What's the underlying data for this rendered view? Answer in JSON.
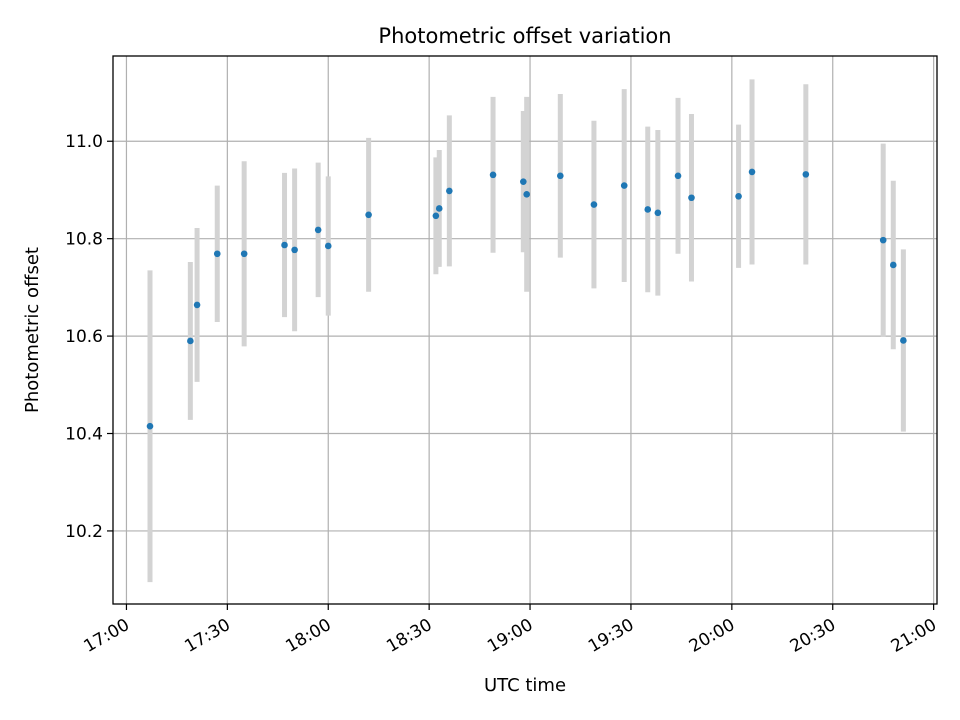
{
  "chart_data": {
    "type": "scatter",
    "title": "Photometric offset variation",
    "xlabel": "UTC time",
    "ylabel": "Photometric offset",
    "x_is_time": true,
    "xlim": [
      "16:56",
      "21:01"
    ],
    "ylim": [
      10.05,
      11.175
    ],
    "x_ticks": [
      "17:00",
      "17:30",
      "18:00",
      "18:30",
      "19:00",
      "19:30",
      "20:00",
      "20:30",
      "21:00"
    ],
    "y_ticks": [
      10.2,
      10.4,
      10.6,
      10.8,
      11.0
    ],
    "y_tick_labels": [
      "10.2",
      "10.4",
      "10.6",
      "10.8",
      "11.0"
    ],
    "grid": true,
    "colors": {
      "point": "#1f77b4",
      "errorbar": "#d3d3d3",
      "grid": "#b0b0b0"
    },
    "points": [
      {
        "x": "17:07",
        "y": 10.415,
        "err": 0.32
      },
      {
        "x": "17:19",
        "y": 10.59,
        "err": 0.162
      },
      {
        "x": "17:21",
        "y": 10.664,
        "err": 0.158
      },
      {
        "x": "17:27",
        "y": 10.769,
        "err": 0.14
      },
      {
        "x": "17:35",
        "y": 10.769,
        "err": 0.19
      },
      {
        "x": "17:47",
        "y": 10.787,
        "err": 0.148
      },
      {
        "x": "17:50",
        "y": 10.777,
        "err": 0.167
      },
      {
        "x": "17:57",
        "y": 10.818,
        "err": 0.138
      },
      {
        "x": "18:00",
        "y": 10.785,
        "err": 0.143
      },
      {
        "x": "18:12",
        "y": 10.849,
        "err": 0.158
      },
      {
        "x": "18:32",
        "y": 10.847,
        "err": 0.12
      },
      {
        "x": "18:33",
        "y": 10.862,
        "err": 0.12
      },
      {
        "x": "18:36",
        "y": 10.898,
        "err": 0.155
      },
      {
        "x": "18:49",
        "y": 10.931,
        "err": 0.16
      },
      {
        "x": "18:58",
        "y": 10.917,
        "err": 0.145
      },
      {
        "x": "18:59",
        "y": 10.891,
        "err": 0.2
      },
      {
        "x": "19:09",
        "y": 10.929,
        "err": 0.168
      },
      {
        "x": "19:19",
        "y": 10.87,
        "err": 0.172
      },
      {
        "x": "19:28",
        "y": 10.909,
        "err": 0.198
      },
      {
        "x": "19:35",
        "y": 10.86,
        "err": 0.17
      },
      {
        "x": "19:38",
        "y": 10.853,
        "err": 0.17
      },
      {
        "x": "19:44",
        "y": 10.929,
        "err": 0.16
      },
      {
        "x": "19:48",
        "y": 10.884,
        "err": 0.172
      },
      {
        "x": "20:02",
        "y": 10.887,
        "err": 0.147
      },
      {
        "x": "20:06",
        "y": 10.937,
        "err": 0.19
      },
      {
        "x": "20:22",
        "y": 10.932,
        "err": 0.185
      },
      {
        "x": "20:45",
        "y": 10.797,
        "err": 0.198
      },
      {
        "x": "20:48",
        "y": 10.746,
        "err": 0.173
      },
      {
        "x": "20:51",
        "y": 10.591,
        "err": 0.187
      }
    ]
  }
}
